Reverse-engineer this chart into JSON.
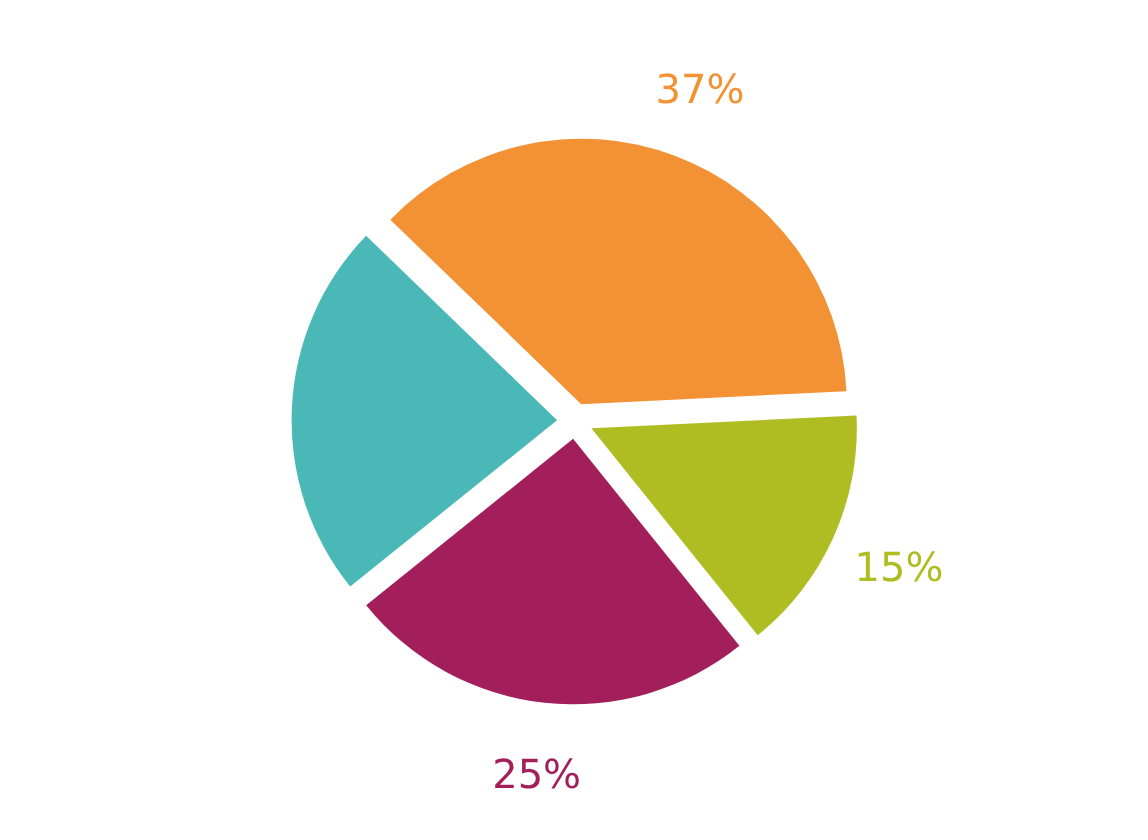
{
  "chart_data": {
    "type": "pie",
    "categories": [
      null,
      null,
      null,
      null
    ],
    "values": [
      37,
      15,
      25,
      23
    ],
    "colors": [
      "#f39234",
      "#afbd22",
      "#a21f5c",
      "#4ab8b6"
    ],
    "value_labels": [
      "37%",
      "15%",
      "25%",
      null
    ]
  }
}
